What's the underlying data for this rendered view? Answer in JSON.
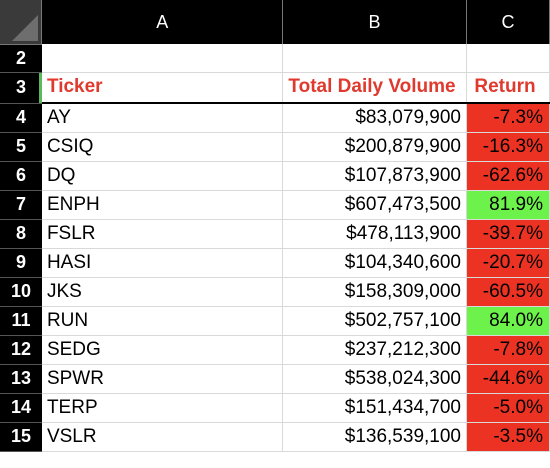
{
  "columns": [
    "A",
    "B",
    "C"
  ],
  "row_numbers": [
    "2",
    "3",
    "4",
    "5",
    "6",
    "7",
    "8",
    "9",
    "10",
    "11",
    "12",
    "13",
    "14",
    "15"
  ],
  "headers": {
    "ticker": "Ticker",
    "volume": "Total Daily Volume",
    "return": "Return"
  },
  "rows": [
    {
      "ticker": "AY",
      "volume": "$83,079,900",
      "return": "-7.3%",
      "status": "negative"
    },
    {
      "ticker": "CSIQ",
      "volume": "$200,879,900",
      "return": "-16.3%",
      "status": "negative"
    },
    {
      "ticker": "DQ",
      "volume": "$107,873,900",
      "return": "-62.6%",
      "status": "negative"
    },
    {
      "ticker": "ENPH",
      "volume": "$607,473,500",
      "return": "81.9%",
      "status": "positive"
    },
    {
      "ticker": "FSLR",
      "volume": "$478,113,900",
      "return": "-39.7%",
      "status": "negative"
    },
    {
      "ticker": "HASI",
      "volume": "$104,340,600",
      "return": "-20.7%",
      "status": "negative"
    },
    {
      "ticker": "JKS",
      "volume": "$158,309,000",
      "return": "-60.5%",
      "status": "negative"
    },
    {
      "ticker": "RUN",
      "volume": "$502,757,100",
      "return": "84.0%",
      "status": "positive"
    },
    {
      "ticker": "SEDG",
      "volume": "$237,212,300",
      "return": "-7.8%",
      "status": "negative"
    },
    {
      "ticker": "SPWR",
      "volume": "$538,024,300",
      "return": "-44.6%",
      "status": "negative"
    },
    {
      "ticker": "TERP",
      "volume": "$151,434,700",
      "return": "-5.0%",
      "status": "negative"
    },
    {
      "ticker": "VSLR",
      "volume": "$136,539,100",
      "return": "-3.5%",
      "status": "negative"
    }
  ],
  "colors": {
    "negative": "#ec3323",
    "positive": "#6df14b",
    "header_text": "#e03a2f"
  }
}
